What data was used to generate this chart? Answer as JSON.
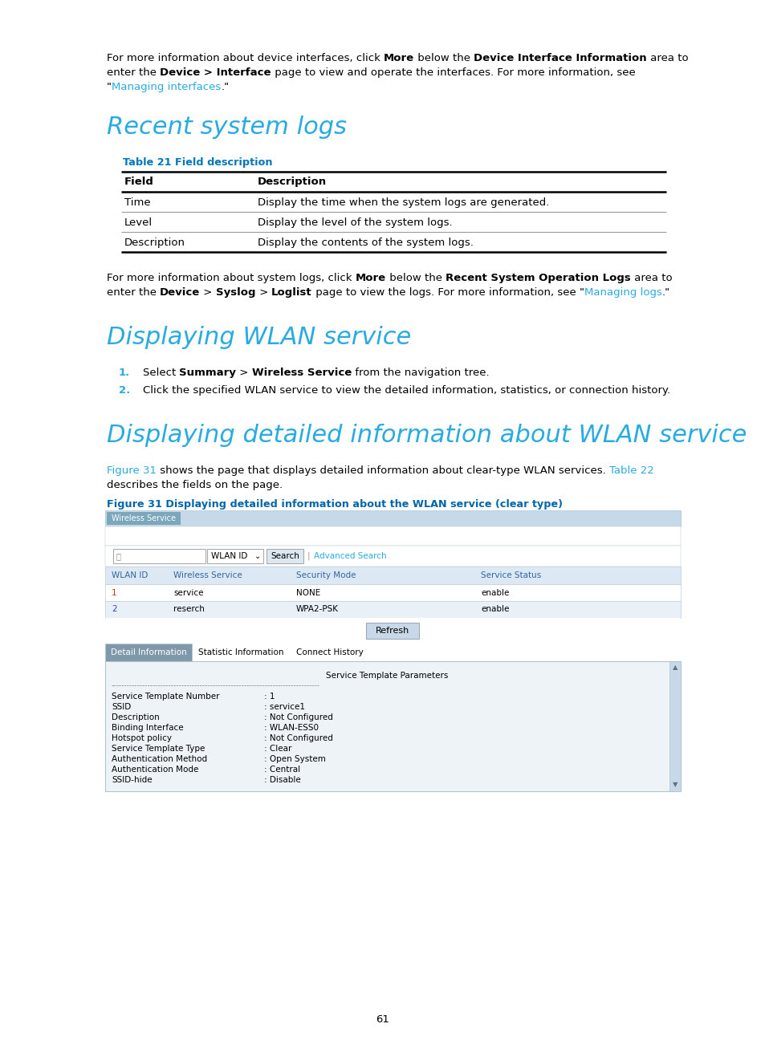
{
  "page_bg": "#ffffff",
  "black": "#000000",
  "cyan": "#29abe2",
  "link_cyan": "#29abe2",
  "fig_caption_blue": "#0066aa",
  "table_caption_blue": "#0077bb",
  "step_num_cyan": "#29abe2",
  "heading_cyan": "#29abe2",
  "intro1_plain1": "For more information about device interfaces, click ",
  "intro1_bold1": "More",
  "intro1_plain2": " below the ",
  "intro1_bold2": "Device Interface Information",
  "intro1_plain3": " area to",
  "intro2_bold1": "Device > Interface",
  "intro2_plain2": " page to view and operate the interfaces. For more information, see",
  "intro3_link": "Managing interfaces",
  "sec1_title": "Recent system logs",
  "tbl_cap": "Table 21 Field description",
  "tbl_h1": "Field",
  "tbl_h2": "Description",
  "tbl_r1c1": "Time",
  "tbl_r1c2": "Display the time when the system logs are generated.",
  "tbl_r2c1": "Level",
  "tbl_r2c2": "Display the level of the system logs.",
  "tbl_r3c1": "Description",
  "tbl_r3c2": "Display the contents of the system logs.",
  "para2_p1": "For more information about system logs, click ",
  "para2_b1": "More",
  "para2_p2": " below the ",
  "para2_b2": "Recent System Operation Logs",
  "para2_p3": " area to",
  "para2_p4": "enter the ",
  "para2_b3": "Device",
  "para2_p5": " > ",
  "para2_b4": "Syslog",
  "para2_p6": " > ",
  "para2_b5": "Loglist",
  "para2_p7": " page to view the logs. For more information, see \"",
  "para2_link": "Managing logs",
  "para2_p8": ".\"",
  "sec2_title": "Displaying WLAN service",
  "step1_bold": "Summary",
  "step1_bold2": "Wireless Service",
  "sec3_title": "Displaying detailed information about WLAN service",
  "fig_link1": "Figure 31",
  "fig_p1": " shows the page that displays detailed information about clear-type WLAN services. ",
  "fig_link2": "Table 22",
  "fig_p2": "describes the fields on the page.",
  "fig_cap": "Figure 31 Displaying detailed information about the WLAN service (clear type)",
  "ui_tab_bg": "#c5d9e8",
  "ui_tab_btn_bg": "#7ba7bc",
  "ui_white": "#ffffff",
  "ui_border": "#b0c4d0",
  "ui_search_border": "#aaaaaa",
  "ui_tbl_hdr_bg": "#dce9f4",
  "ui_tbl_hdr_color": "#336699",
  "ui_tbl_row1_bg": "#ffffff",
  "ui_tbl_row2_bg": "#eaf0f8",
  "ui_tbl_border": "#c0ccd8",
  "ui_refresh_bg": "#c8d8e8",
  "ui_refresh_border": "#9aabbb",
  "ui_active_tab_bg": "#8099aa",
  "ui_content_bg": "#eef3f8",
  "ui_scroll_bg": "#c8d8e8",
  "ui_content_border": "#b0c4d0",
  "page_num": "61"
}
